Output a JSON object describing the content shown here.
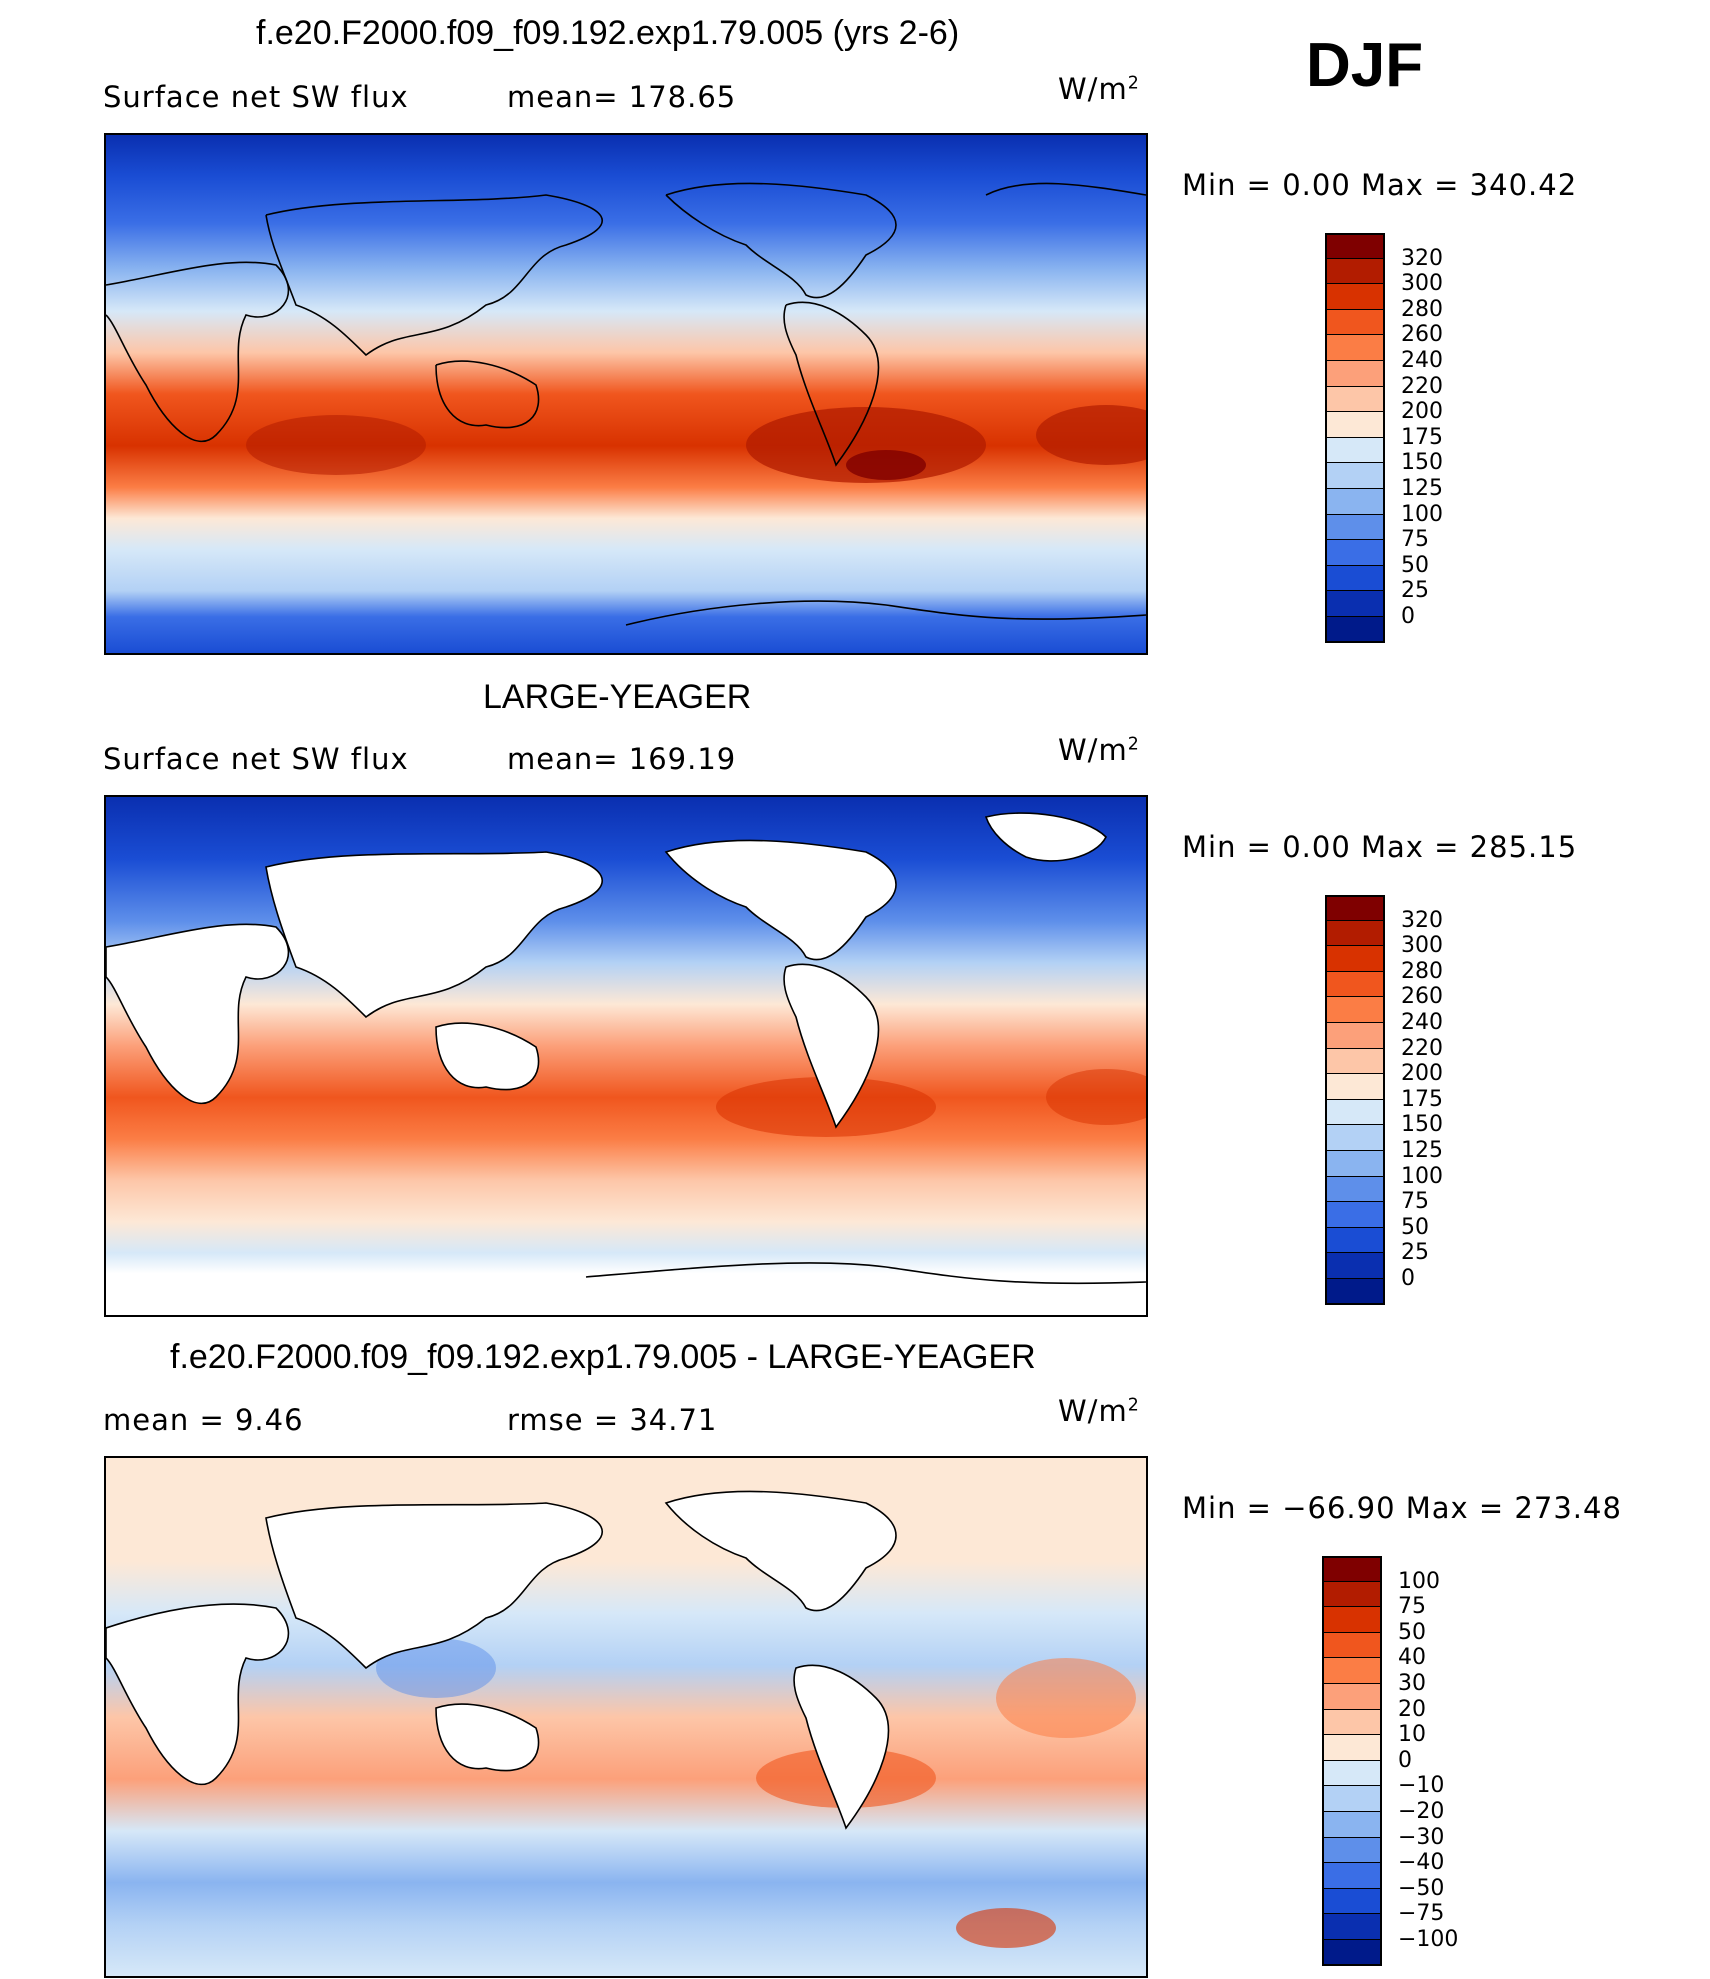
{
  "season": "DJF",
  "units_base": "W/m",
  "units_sup": "2",
  "panels": [
    {
      "title": "f.e20.F2000.f09_f09.192.exp1.79.005 (yrs 2-6)",
      "left_label": "Surface net SW flux",
      "mid_label": "mean=  178.65",
      "minmax": "Min  =     0.00  Max  =  340.42",
      "colorbar": {
        "labels": [
          "320",
          "300",
          "280",
          "260",
          "240",
          "220",
          "200",
          "175",
          "150",
          "125",
          "100",
          "75",
          "50",
          "25",
          "0"
        ],
        "colors": [
          "#7f0000",
          "#b21c00",
          "#d83200",
          "#f0561e",
          "#fb7d45",
          "#fca07a",
          "#fdc6a8",
          "#fde8d6",
          "#d6e8f8",
          "#b3d1f5",
          "#8ab4f0",
          "#5e8fea",
          "#3a6ee6",
          "#1a4dd4",
          "#0a2fb0",
          "#001a8a"
        ]
      }
    },
    {
      "title": "LARGE-YEAGER",
      "left_label": "Surface net SW flux",
      "mid_label": "mean=  169.19",
      "minmax": "Min  =     0.00  Max  =  285.15",
      "colorbar": {
        "labels": [
          "320",
          "300",
          "280",
          "260",
          "240",
          "220",
          "200",
          "175",
          "150",
          "125",
          "100",
          "75",
          "50",
          "25",
          "0"
        ],
        "colors": [
          "#7f0000",
          "#b21c00",
          "#d83200",
          "#f0561e",
          "#fb7d45",
          "#fca07a",
          "#fdc6a8",
          "#fde8d6",
          "#d6e8f8",
          "#b3d1f5",
          "#8ab4f0",
          "#5e8fea",
          "#3a6ee6",
          "#1a4dd4",
          "#0a2fb0",
          "#001a8a"
        ]
      }
    },
    {
      "title": "f.e20.F2000.f09_f09.192.exp1.79.005 - LARGE-YEAGER",
      "left_label": "mean  =      9.46",
      "mid_label": "rmse  =    34.71",
      "minmax": "Min  =  −66.90  Max  =  273.48",
      "colorbar": {
        "labels": [
          "100",
          "75",
          "50",
          "40",
          "30",
          "20",
          "10",
          "0",
          "−10",
          "−20",
          "−30",
          "−40",
          "−50",
          "−75",
          "−100"
        ],
        "colors": [
          "#7f0000",
          "#b21c00",
          "#d83200",
          "#f0561e",
          "#fb7d45",
          "#fca07a",
          "#fdc6a8",
          "#fde8d6",
          "#d6e8f8",
          "#b3d1f5",
          "#8ab4f0",
          "#5e8fea",
          "#3a6ee6",
          "#1a4dd4",
          "#0a2fb0",
          "#001a8a"
        ]
      }
    }
  ]
}
